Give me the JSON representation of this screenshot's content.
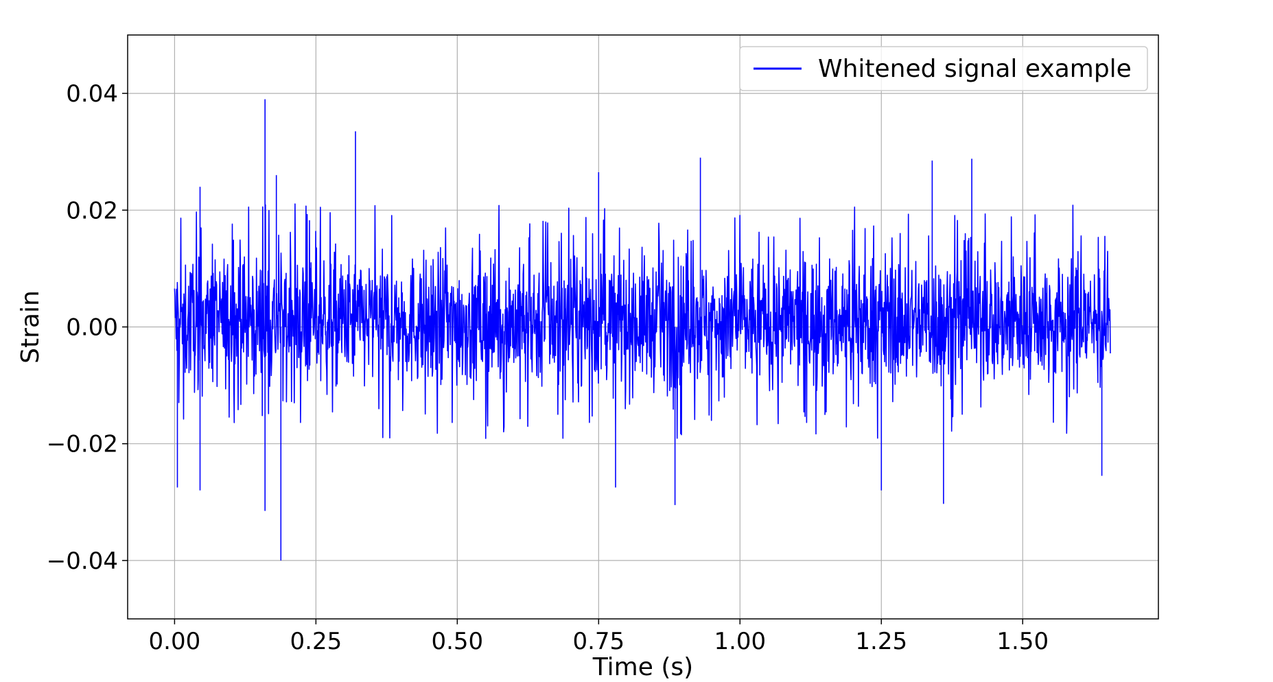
{
  "chart_data": {
    "type": "line",
    "xlabel": "Time (s)",
    "ylabel": "Strain",
    "xlim": [
      -0.083,
      1.74
    ],
    "ylim": [
      -0.05,
      0.05
    ],
    "xticks": [
      0.0,
      0.25,
      0.5,
      0.75,
      1.0,
      1.25,
      1.5
    ],
    "xtick_labels": [
      "0.00",
      "0.25",
      "0.50",
      "0.75",
      "1.00",
      "1.25",
      "1.50"
    ],
    "yticks": [
      -0.04,
      -0.02,
      0.0,
      0.02,
      0.04
    ],
    "ytick_labels": [
      "−0.04",
      "−0.02",
      "0.00",
      "0.02",
      "0.04"
    ],
    "grid": true,
    "legend_position": "top-right",
    "series": [
      {
        "name": "Whitened signal example",
        "color": "#0000ff",
        "x_range": [
          0.0,
          1.655
        ],
        "typical_band": [
          -0.012,
          0.014
        ],
        "peaks": [
          {
            "x": 0.16,
            "y": 0.039
          },
          {
            "x": 0.32,
            "y": 0.0335
          },
          {
            "x": 0.93,
            "y": 0.029
          },
          {
            "x": 1.41,
            "y": 0.0288
          },
          {
            "x": 1.34,
            "y": 0.0285
          },
          {
            "x": 0.18,
            "y": 0.026
          },
          {
            "x": 0.75,
            "y": 0.0265
          },
          {
            "x": 0.045,
            "y": 0.024
          }
        ],
        "troughs": [
          {
            "x": 0.188,
            "y": -0.04
          },
          {
            "x": 0.16,
            "y": -0.0315
          },
          {
            "x": 0.885,
            "y": -0.0305
          },
          {
            "x": 1.36,
            "y": -0.0303
          },
          {
            "x": 1.25,
            "y": -0.028
          },
          {
            "x": 0.045,
            "y": -0.028
          },
          {
            "x": 0.005,
            "y": -0.0275
          },
          {
            "x": 0.78,
            "y": -0.0275
          },
          {
            "x": 1.64,
            "y": -0.0255
          }
        ]
      }
    ]
  }
}
